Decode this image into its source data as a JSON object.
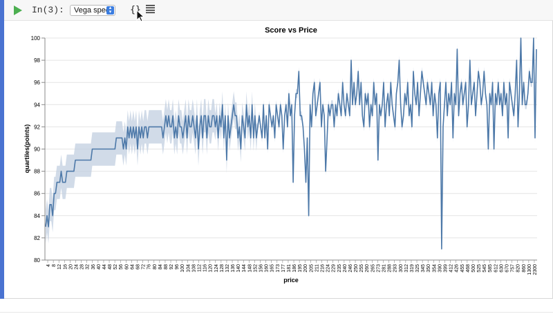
{
  "toolbar": {
    "prompt": "In(3):",
    "mode_select": "Vega spec",
    "braces_label": "{}"
  },
  "colors": {
    "accent": "#4a73d1",
    "line": "#4c78a8",
    "band": "#c2cfe0"
  },
  "chart_data": {
    "type": "line",
    "title": "Score vs Price",
    "xlabel": "price",
    "ylabel": "quartiles(points)",
    "ylim": [
      80,
      100
    ],
    "yticks": [
      80,
      82,
      84,
      86,
      88,
      90,
      92,
      94,
      96,
      98,
      100
    ],
    "x_tick_labels": [
      "4",
      "8",
      "12",
      "16",
      "20",
      "24",
      "28",
      "32",
      "36",
      "40",
      "44",
      "48",
      "52",
      "56",
      "60",
      "64",
      "68",
      "72",
      "76",
      "80",
      "84",
      "88",
      "92",
      "96",
      "100",
      "104",
      "108",
      "112",
      "116",
      "120",
      "124",
      "128",
      "132",
      "136",
      "140",
      "144",
      "148",
      "152",
      "156",
      "160",
      "165",
      "173",
      "177",
      "181",
      "186",
      "195",
      "200",
      "205",
      "211",
      "216",
      "224",
      "229",
      "235",
      "240",
      "246",
      "250",
      "255",
      "260",
      "265",
      "273",
      "281",
      "288",
      "293",
      "300",
      "312",
      "319",
      "325",
      "345",
      "350",
      "354",
      "390",
      "399",
      "412",
      "426",
      "455",
      "468",
      "500",
      "525",
      "545",
      "585",
      "612",
      "630",
      "670",
      "757",
      "820",
      "860",
      "1300",
      "2300"
    ],
    "grid": true,
    "series": [
      {
        "median": [
          83,
          84,
          83,
          85,
          85,
          84,
          86,
          86,
          87,
          87,
          87,
          88,
          87,
          87,
          87,
          88,
          88,
          88,
          88,
          88,
          88,
          89,
          89,
          89,
          89,
          89,
          89,
          89,
          89,
          89,
          89,
          89,
          89,
          90,
          90,
          90,
          90,
          90,
          90,
          90,
          90,
          90,
          90,
          90,
          90,
          90,
          90,
          90,
          90,
          90,
          91,
          91,
          91,
          91,
          91,
          90,
          91,
          90,
          92,
          91,
          92,
          91,
          92,
          91,
          92,
          90,
          92,
          91,
          92,
          91,
          92,
          92,
          91,
          92,
          92,
          92,
          92,
          92,
          92,
          92,
          92,
          92,
          92,
          91,
          92,
          93,
          92,
          93,
          92,
          92,
          93,
          91,
          92,
          91,
          93,
          92,
          92,
          91,
          92,
          93,
          91,
          93,
          92,
          92,
          93,
          92,
          91,
          93,
          90,
          92,
          93,
          91,
          93,
          93,
          91,
          93,
          92,
          92,
          93,
          93,
          92,
          93,
          91,
          93,
          92,
          94,
          91,
          93,
          89,
          93,
          91,
          92,
          93,
          94,
          93,
          93,
          91,
          92,
          90,
          93,
          92,
          91,
          94,
          92,
          93,
          91,
          94,
          91,
          93,
          91,
          92,
          93,
          92,
          91,
          94,
          91,
          93,
          90,
          94,
          93,
          92,
          93,
          91,
          94,
          93,
          92,
          94,
          93,
          90,
          93,
          94,
          92,
          95,
          93,
          94,
          87,
          93,
          95,
          95,
          97,
          93,
          93,
          92,
          90,
          87,
          91,
          84,
          94,
          92,
          95,
          96,
          93,
          94,
          95,
          96,
          92,
          94,
          93,
          88,
          91,
          94,
          93,
          94,
          94,
          92,
          94,
          93,
          95,
          94,
          93,
          96,
          94,
          93,
          95,
          94,
          93,
          98,
          94,
          96,
          94,
          95,
          97,
          94,
          96,
          93,
          92,
          95,
          94,
          95,
          92,
          94,
          93,
          96,
          94,
          95,
          89,
          94,
          93,
          94,
          96,
          92,
          94,
          95,
          93,
          96,
          94,
          93,
          92,
          95,
          96,
          98,
          94,
          92,
          93,
          95,
          94,
          96,
          93,
          94,
          92,
          97,
          95,
          94,
          96,
          93,
          95,
          97,
          96,
          95,
          94,
          96,
          95,
          94,
          96,
          93,
          95,
          94,
          91,
          95,
          96,
          81,
          92,
          94,
          96,
          93,
          95,
          94,
          96,
          91,
          95,
          94,
          99,
          93,
          95,
          96,
          94,
          95,
          96,
          92,
          94,
          98,
          94,
          95,
          96,
          93,
          95,
          97,
          96,
          94,
          95,
          97,
          95,
          94,
          90,
          95,
          94,
          96,
          90,
          95,
          94,
          96,
          94,
          95,
          93,
          96,
          94,
          95,
          91,
          96,
          95,
          94,
          93,
          95,
          98,
          92,
          95,
          100,
          94,
          96,
          94,
          94,
          95,
          97,
          96,
          96,
          100,
          91,
          99
        ]
      }
    ]
  }
}
